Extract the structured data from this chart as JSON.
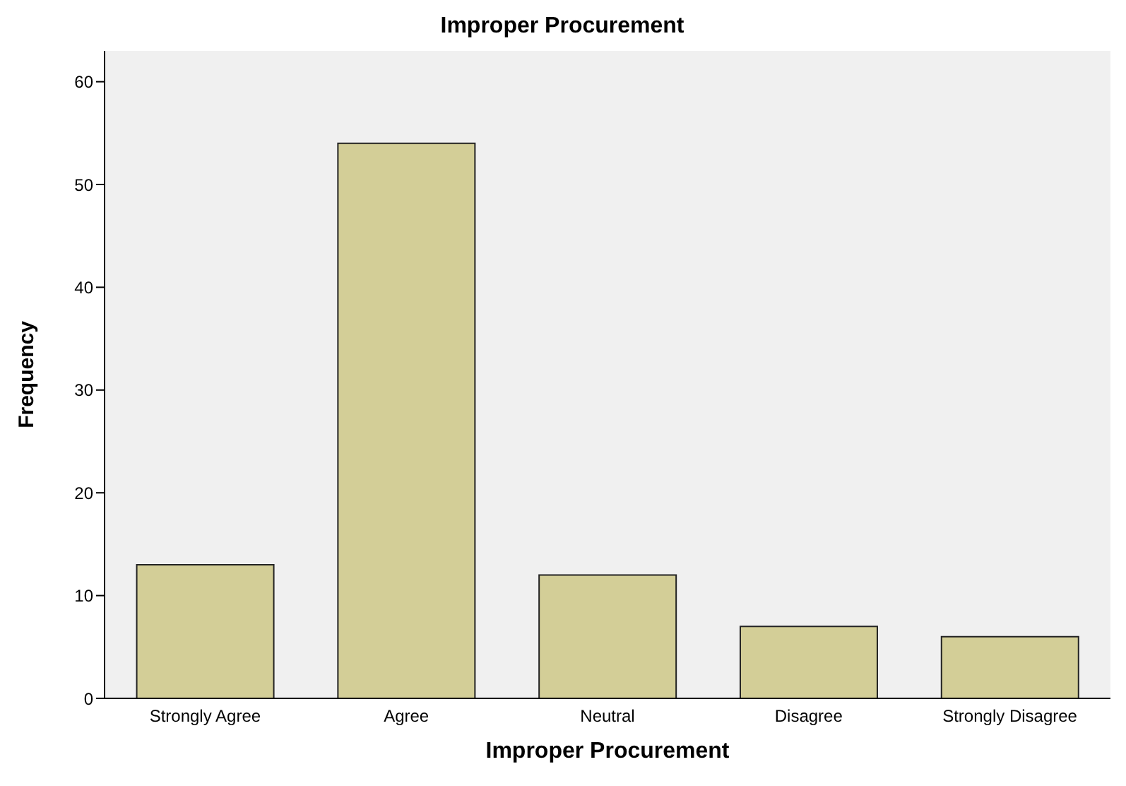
{
  "chart_data": {
    "type": "bar",
    "title": "Improper Procurement",
    "xlabel": "Improper Procurement",
    "ylabel": "Frequency",
    "categories": [
      "Strongly Agree",
      "Agree",
      "Neutral",
      "Disagree",
      "Strongly Disagree"
    ],
    "values": [
      13,
      54,
      12,
      7,
      6
    ],
    "color": "#d3ce97",
    "ylim": [
      0,
      63
    ],
    "yticks": [
      0,
      10,
      20,
      30,
      40,
      50,
      60
    ],
    "grid": false
  }
}
